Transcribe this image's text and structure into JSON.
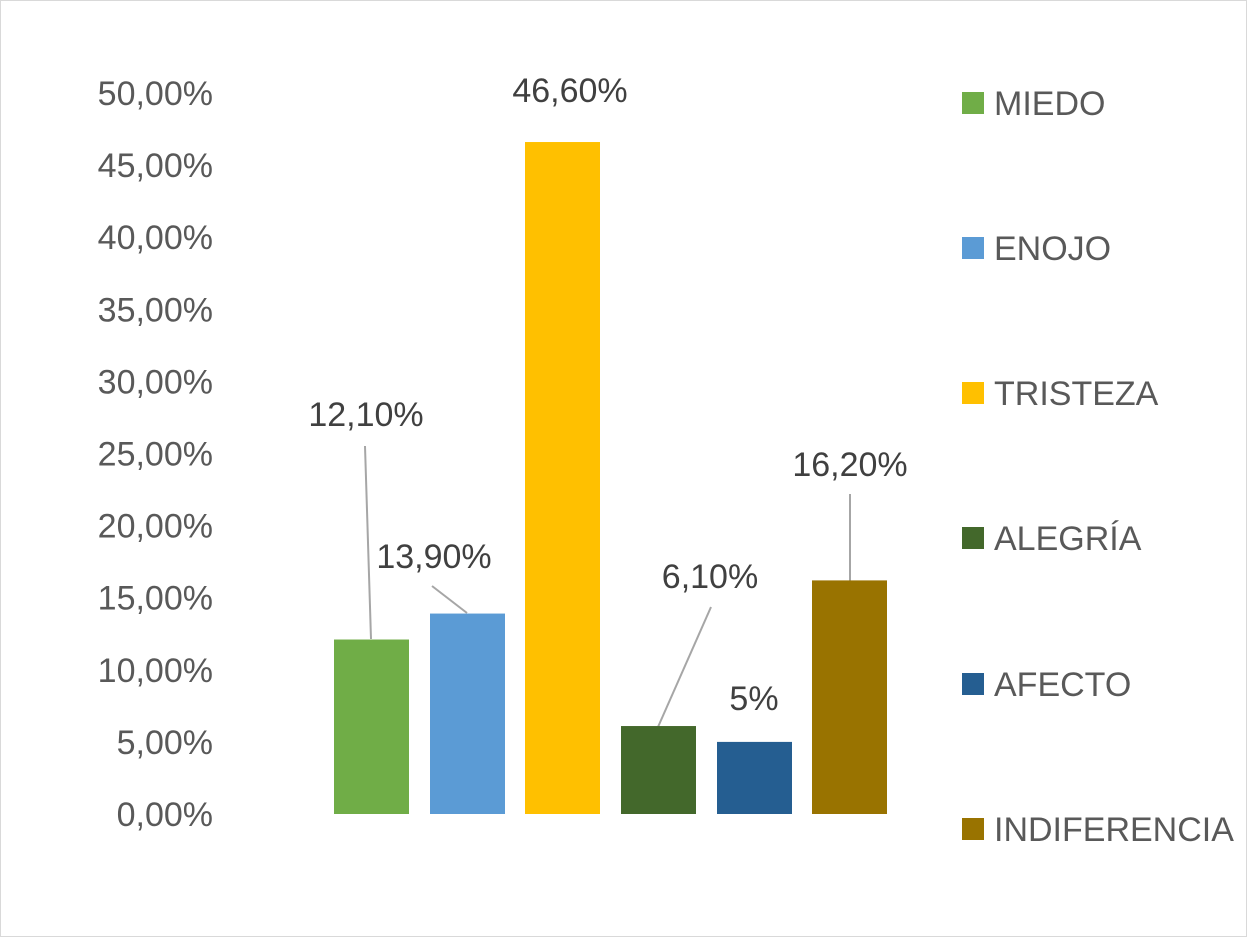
{
  "chart_data": {
    "type": "bar",
    "categories": [
      "MIEDO",
      "ENOJO",
      "TRISTEZA",
      "ALEGRÍA",
      "AFECTO",
      "INDIFERENCIA"
    ],
    "values": [
      12.1,
      13.9,
      46.6,
      6.1,
      5,
      16.2
    ],
    "value_labels": [
      "12,10%",
      "13,90%",
      "46,60%",
      "6,10%",
      "5%",
      "16,20%"
    ],
    "colors": [
      "#70AD47",
      "#5B9BD5",
      "#FFC000",
      "#43682B",
      "#255E91",
      "#997300"
    ],
    "title": "",
    "xlabel": "",
    "ylabel": "",
    "ylim": [
      0,
      50
    ],
    "yticks": [
      0,
      5,
      10,
      15,
      20,
      25,
      30,
      35,
      40,
      45,
      50
    ],
    "ytick_labels": [
      "0,00%",
      "5,00%",
      "10,00%",
      "15,00%",
      "20,00%",
      "25,00%",
      "30,00%",
      "35,00%",
      "40,00%",
      "45,00%",
      "50,00%"
    ],
    "grid": false,
    "legend": {
      "position": "right",
      "entries": [
        "MIEDO",
        "ENOJO",
        "TRISTEZA",
        "ALEGRÍA",
        "AFECTO",
        "INDIFERENCIA"
      ]
    }
  }
}
